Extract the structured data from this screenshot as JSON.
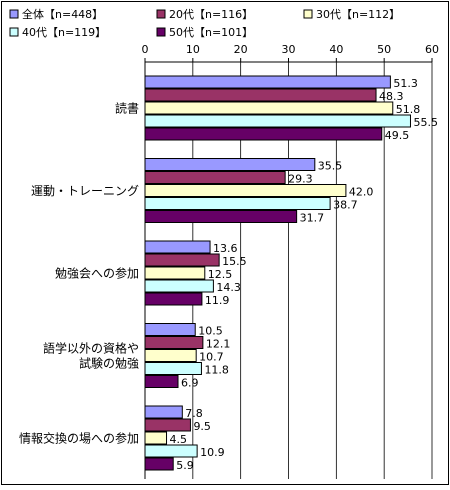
{
  "chart_data": {
    "type": "bar",
    "orientation": "horizontal",
    "categories": [
      "読書",
      "運動・トレーニング",
      "勉強会への参加",
      "語学以外の資格や\n試験の勉強",
      "情報交換の場への参加"
    ],
    "series": [
      {
        "name": "全体【n=448】",
        "color": "#9999ff",
        "values": [
          51.3,
          35.5,
          13.6,
          10.5,
          7.8
        ]
      },
      {
        "name": "20代【n=116】",
        "color": "#993366",
        "values": [
          48.3,
          29.3,
          15.5,
          12.1,
          9.5
        ]
      },
      {
        "name": "30代【n=112】",
        "color": "#ffffcc",
        "values": [
          51.8,
          42.0,
          12.5,
          10.7,
          4.5
        ]
      },
      {
        "name": "40代【n=119】",
        "color": "#ccffff",
        "values": [
          55.5,
          38.7,
          14.3,
          11.8,
          10.9
        ]
      },
      {
        "name": "50代【n=101】",
        "color": "#660066",
        "values": [
          49.5,
          31.7,
          11.9,
          6.9,
          5.9
        ]
      }
    ],
    "value_labels": [
      [
        "51.3",
        "35.5",
        "13.6",
        "10.5",
        "7.8"
      ],
      [
        "48.3",
        "29.3",
        "15.5",
        "12.1",
        "9.5"
      ],
      [
        "51.8",
        "42.0",
        "12.5",
        "10.7",
        "4.5"
      ],
      [
        "55.5",
        "38.7",
        "14.3",
        "11.8",
        "10.9"
      ],
      [
        "49.5",
        "31.7",
        "11.9",
        "6.9",
        "5.9"
      ]
    ],
    "x_ticks": [
      0,
      10,
      20,
      30,
      40,
      50,
      60
    ],
    "xlim": [
      0,
      60
    ],
    "grid": true,
    "legend_position": "top"
  }
}
